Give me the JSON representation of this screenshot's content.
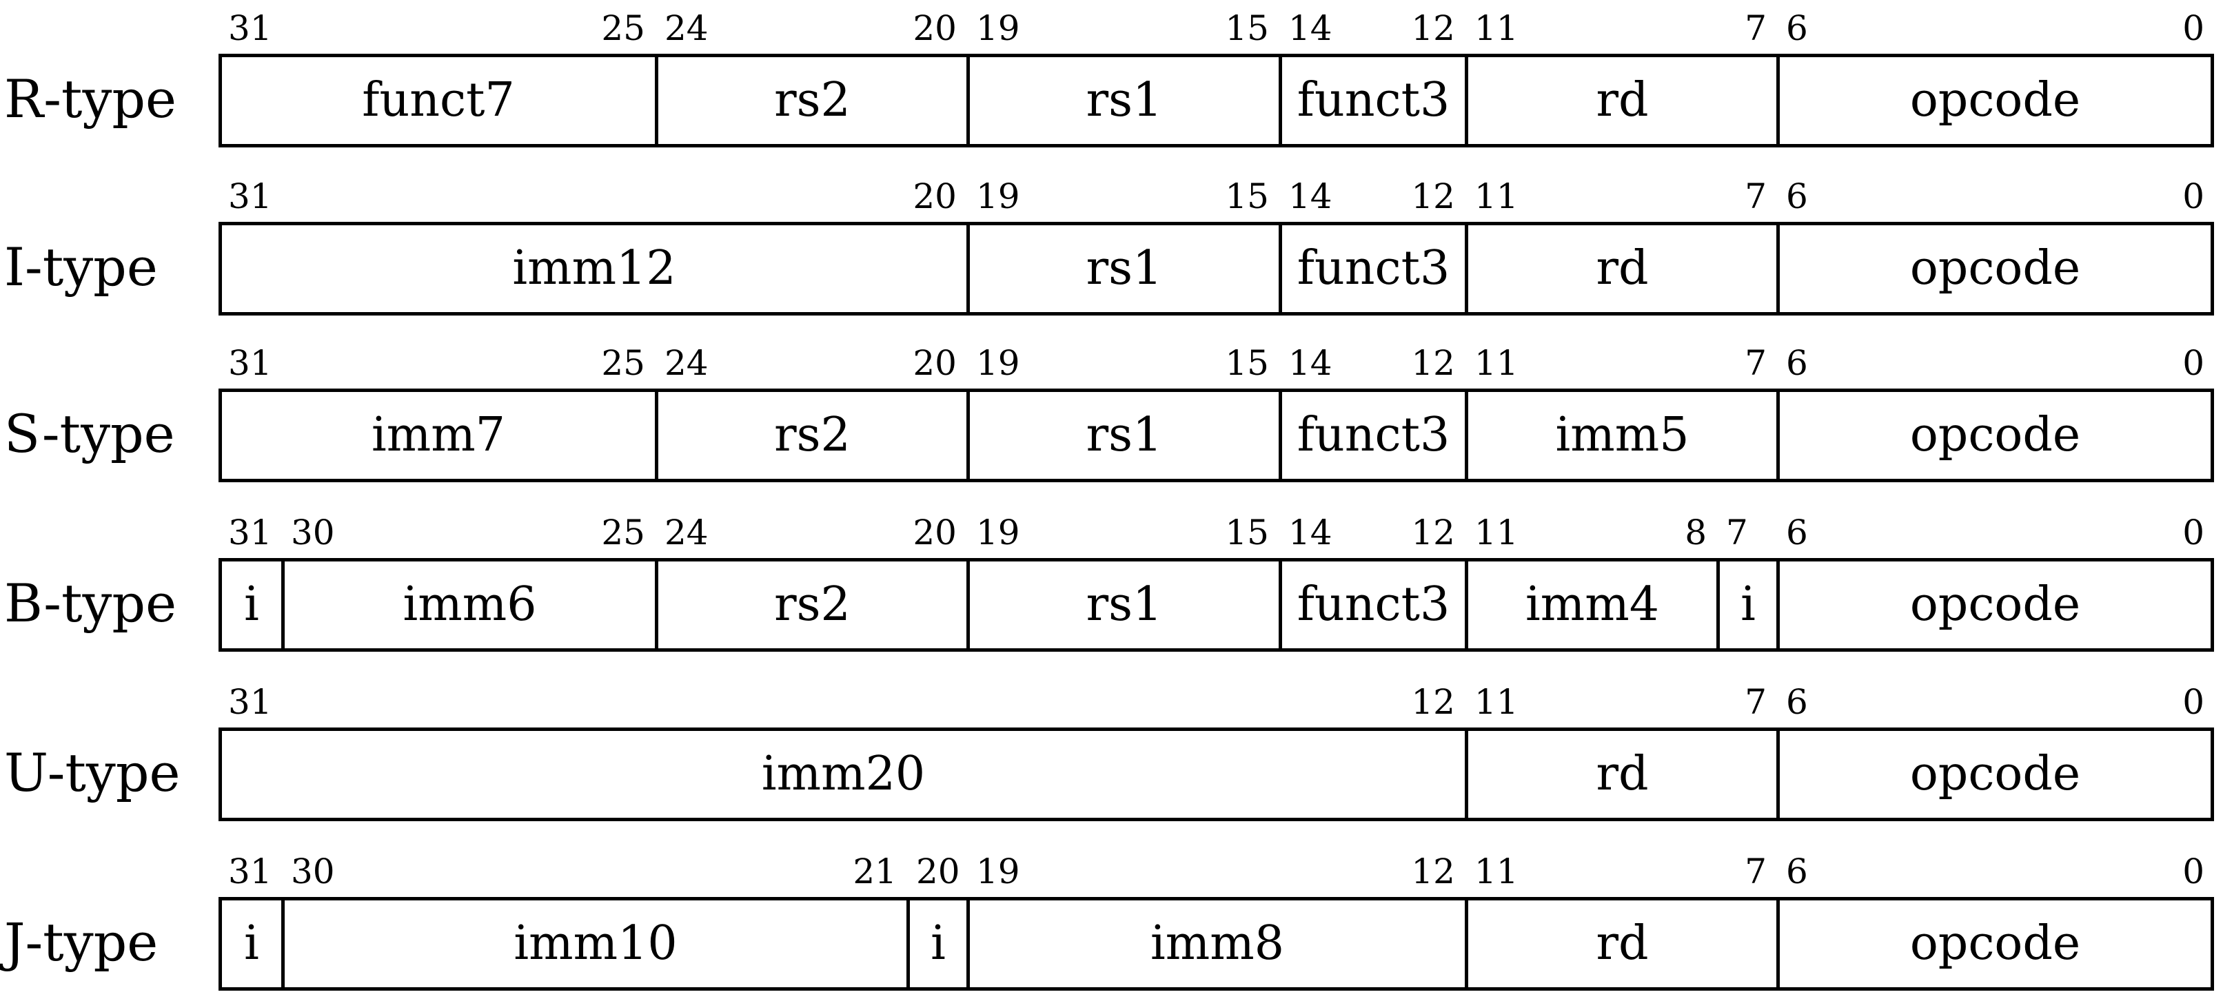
{
  "diagram": {
    "rows": [
      {
        "label": "R-type",
        "fields": [
          {
            "name": "funct7",
            "hi": 31,
            "lo": 25
          },
          {
            "name": "rs2",
            "hi": 24,
            "lo": 20
          },
          {
            "name": "rs1",
            "hi": 19,
            "lo": 15
          },
          {
            "name": "funct3",
            "hi": 14,
            "lo": 12
          },
          {
            "name": "rd",
            "hi": 11,
            "lo": 7
          },
          {
            "name": "opcode",
            "hi": 6,
            "lo": 0
          }
        ]
      },
      {
        "label": "I-type",
        "fields": [
          {
            "name": "imm12",
            "hi": 31,
            "lo": 20
          },
          {
            "name": "rs1",
            "hi": 19,
            "lo": 15
          },
          {
            "name": "funct3",
            "hi": 14,
            "lo": 12
          },
          {
            "name": "rd",
            "hi": 11,
            "lo": 7
          },
          {
            "name": "opcode",
            "hi": 6,
            "lo": 0
          }
        ]
      },
      {
        "label": "S-type",
        "fields": [
          {
            "name": "imm7",
            "hi": 31,
            "lo": 25
          },
          {
            "name": "rs2",
            "hi": 24,
            "lo": 20
          },
          {
            "name": "rs1",
            "hi": 19,
            "lo": 15
          },
          {
            "name": "funct3",
            "hi": 14,
            "lo": 12
          },
          {
            "name": "imm5",
            "hi": 11,
            "lo": 7
          },
          {
            "name": "opcode",
            "hi": 6,
            "lo": 0
          }
        ]
      },
      {
        "label": "B-type",
        "fields": [
          {
            "name": "i",
            "hi": 31,
            "lo": 31
          },
          {
            "name": "imm6",
            "hi": 30,
            "lo": 25
          },
          {
            "name": "rs2",
            "hi": 24,
            "lo": 20
          },
          {
            "name": "rs1",
            "hi": 19,
            "lo": 15
          },
          {
            "name": "funct3",
            "hi": 14,
            "lo": 12
          },
          {
            "name": "imm4",
            "hi": 11,
            "lo": 8
          },
          {
            "name": "i",
            "hi": 7,
            "lo": 7
          },
          {
            "name": "opcode",
            "hi": 6,
            "lo": 0
          }
        ]
      },
      {
        "label": "U-type",
        "fields": [
          {
            "name": "imm20",
            "hi": 31,
            "lo": 12
          },
          {
            "name": "rd",
            "hi": 11,
            "lo": 7
          },
          {
            "name": "opcode",
            "hi": 6,
            "lo": 0
          }
        ]
      },
      {
        "label": "J-type",
        "fields": [
          {
            "name": "i",
            "hi": 31,
            "lo": 31
          },
          {
            "name": "imm10",
            "hi": 30,
            "lo": 21
          },
          {
            "name": "i",
            "hi": 20,
            "lo": 20
          },
          {
            "name": "imm8",
            "hi": 19,
            "lo": 12
          },
          {
            "name": "rd",
            "hi": 11,
            "lo": 7
          },
          {
            "name": "opcode",
            "hi": 6,
            "lo": 0
          }
        ]
      }
    ]
  }
}
